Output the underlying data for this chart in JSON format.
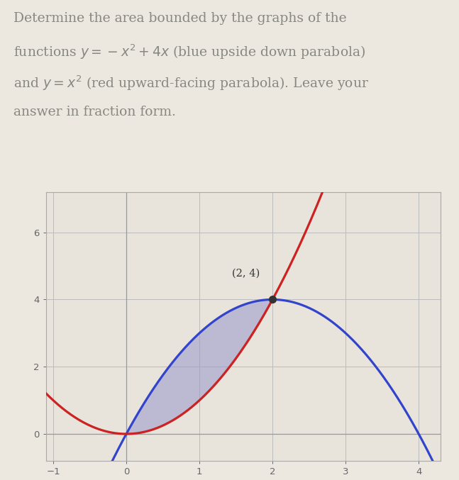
{
  "blue_color": "#3344cc",
  "red_color": "#cc2222",
  "fill_color": "#9999cc",
  "fill_alpha": 0.55,
  "dot_color": "#333333",
  "annotation_text": "(2, 4)",
  "annotation_fontsize": 10.5,
  "xlim": [
    -1.1,
    4.3
  ],
  "ylim": [
    -0.8,
    7.2
  ],
  "xticks": [
    -1,
    0,
    1,
    2,
    3,
    4
  ],
  "yticks": [
    0,
    2,
    4,
    6
  ],
  "bg_color": "#ece8e0",
  "plot_bg_color": "#e8e4dc",
  "grid_color": "#bbbbbb",
  "figsize": [
    6.47,
    6.77
  ],
  "dpi": 100,
  "title_lines": [
    "Determine the area bounded by the graphs of the",
    "functions $y = -x^2 + 4x$ (blue upside down parabola)",
    "and $y = x^2$ (red upward-facing parabola). Leave your",
    "answer in fraction form."
  ],
  "title_fontsize": 13.5,
  "title_color": "#888880"
}
